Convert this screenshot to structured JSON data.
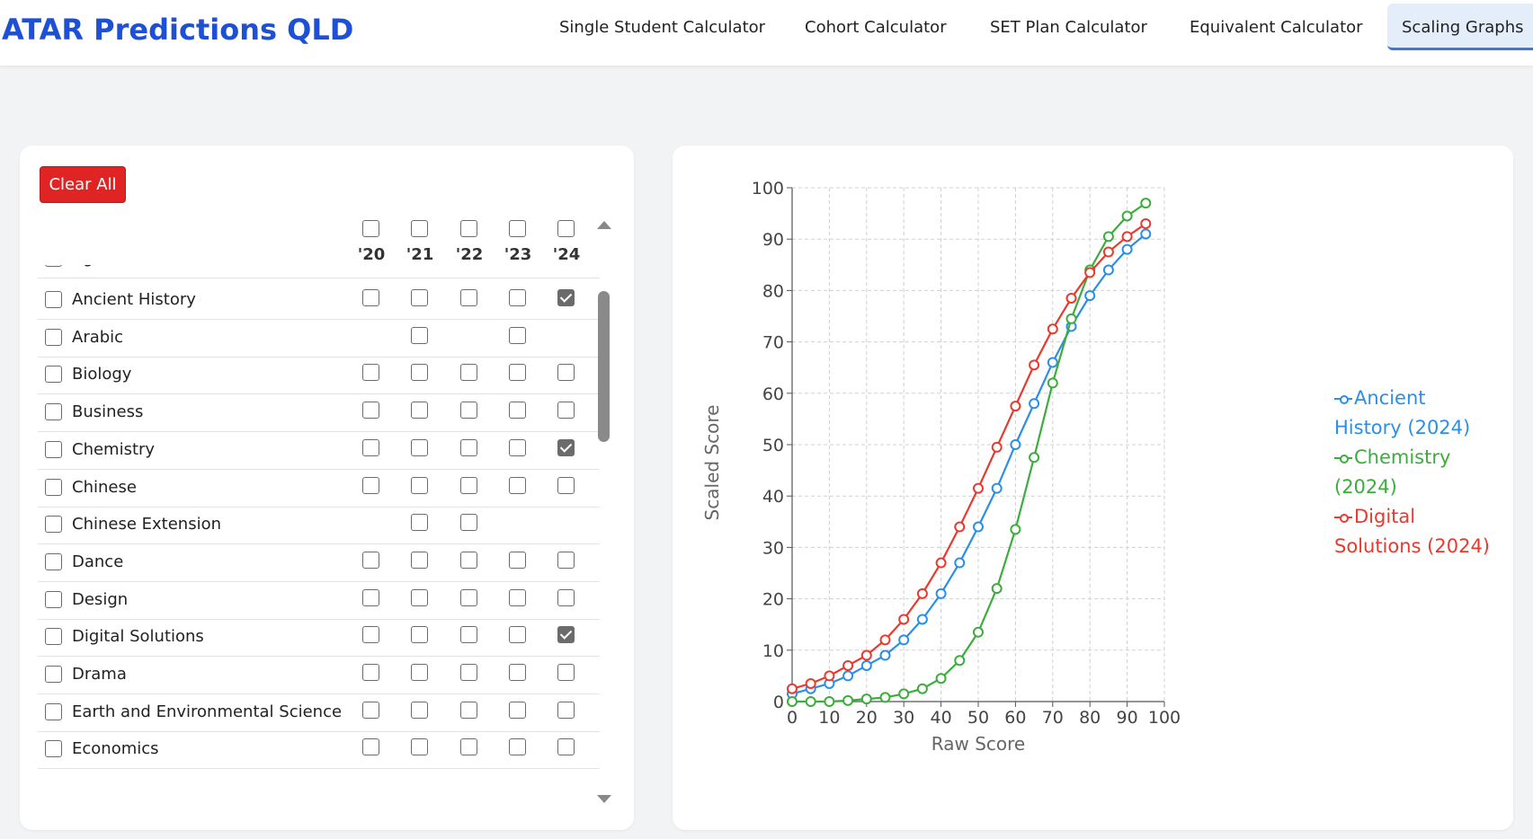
{
  "header": {
    "brand": "ATAR Predictions QLD",
    "nav": [
      {
        "label": "Single Student Calculator",
        "active": false
      },
      {
        "label": "Cohort Calculator",
        "active": false
      },
      {
        "label": "SET Plan Calculator",
        "active": false
      },
      {
        "label": "Equivalent Calculator",
        "active": false
      },
      {
        "label": "Scaling Graphs",
        "active": true
      }
    ]
  },
  "selector": {
    "clear_label": "Clear All",
    "years": [
      "'20",
      "'21",
      "'22",
      "'23",
      "'24"
    ],
    "partial_row": {
      "label": "Agricultural Science",
      "available": [
        true,
        true,
        true,
        true,
        true
      ],
      "checked": [
        false,
        false,
        false,
        false,
        false
      ]
    },
    "subjects": [
      {
        "label": "Ancient History",
        "available": [
          true,
          true,
          true,
          true,
          true
        ],
        "checked": [
          false,
          false,
          false,
          false,
          true
        ]
      },
      {
        "label": "Arabic",
        "available": [
          false,
          true,
          false,
          true,
          false
        ],
        "checked": [
          false,
          false,
          false,
          false,
          false
        ]
      },
      {
        "label": "Biology",
        "available": [
          true,
          true,
          true,
          true,
          true
        ],
        "checked": [
          false,
          false,
          false,
          false,
          false
        ]
      },
      {
        "label": "Business",
        "available": [
          true,
          true,
          true,
          true,
          true
        ],
        "checked": [
          false,
          false,
          false,
          false,
          false
        ]
      },
      {
        "label": "Chemistry",
        "available": [
          true,
          true,
          true,
          true,
          true
        ],
        "checked": [
          false,
          false,
          false,
          false,
          true
        ]
      },
      {
        "label": "Chinese",
        "available": [
          true,
          true,
          true,
          true,
          true
        ],
        "checked": [
          false,
          false,
          false,
          false,
          false
        ]
      },
      {
        "label": "Chinese Extension",
        "available": [
          false,
          true,
          true,
          false,
          false
        ],
        "checked": [
          false,
          false,
          false,
          false,
          false
        ]
      },
      {
        "label": "Dance",
        "available": [
          true,
          true,
          true,
          true,
          true
        ],
        "checked": [
          false,
          false,
          false,
          false,
          false
        ]
      },
      {
        "label": "Design",
        "available": [
          true,
          true,
          true,
          true,
          true
        ],
        "checked": [
          false,
          false,
          false,
          false,
          false
        ]
      },
      {
        "label": "Digital Solutions",
        "available": [
          true,
          true,
          true,
          true,
          true
        ],
        "checked": [
          false,
          false,
          false,
          false,
          true
        ]
      },
      {
        "label": "Drama",
        "available": [
          true,
          true,
          true,
          true,
          true
        ],
        "checked": [
          false,
          false,
          false,
          false,
          false
        ]
      },
      {
        "label": "Earth and Environmental Science",
        "available": [
          true,
          true,
          true,
          true,
          true
        ],
        "checked": [
          false,
          false,
          false,
          false,
          false
        ]
      },
      {
        "label": "Economics",
        "available": [
          true,
          true,
          true,
          true,
          true
        ],
        "checked": [
          false,
          false,
          false,
          false,
          false
        ]
      }
    ]
  },
  "chart_data": {
    "type": "line",
    "title": "",
    "xlabel": "Raw Score",
    "ylabel": "Scaled Score",
    "xlim": [
      0,
      100
    ],
    "ylim": [
      0,
      100
    ],
    "xticks": [
      0,
      10,
      20,
      30,
      40,
      50,
      60,
      70,
      80,
      90,
      100
    ],
    "yticks": [
      0,
      10,
      20,
      30,
      40,
      50,
      60,
      70,
      80,
      90,
      100
    ],
    "grid": true,
    "legend_position": "right",
    "x": [
      0,
      5,
      10,
      15,
      20,
      25,
      30,
      35,
      40,
      45,
      50,
      55,
      60,
      65,
      70,
      75,
      80,
      85,
      90,
      95
    ],
    "series": [
      {
        "name": "Ancient History (2024)",
        "color": "#2b8fe8",
        "values": [
          1.5,
          2.5,
          3.5,
          5,
          7,
          9,
          12,
          16,
          21,
          27,
          34,
          41.5,
          50,
          58,
          66,
          73,
          79,
          84,
          88,
          91
        ]
      },
      {
        "name": "Chemistry (2024)",
        "color": "#3cad3c",
        "values": [
          0,
          0,
          0,
          0.2,
          0.5,
          0.8,
          1.5,
          2.5,
          4.5,
          8,
          13.5,
          22,
          33.5,
          47.5,
          62,
          74.5,
          84,
          90.5,
          94.5,
          97
        ]
      },
      {
        "name": "Digital Solutions (2024)",
        "color": "#e83a2e",
        "values": [
          2.5,
          3.5,
          5,
          7,
          9,
          12,
          16,
          21,
          27,
          34,
          41.5,
          49.5,
          57.5,
          65.5,
          72.5,
          78.5,
          83.5,
          87.5,
          90.5,
          93
        ]
      }
    ]
  }
}
